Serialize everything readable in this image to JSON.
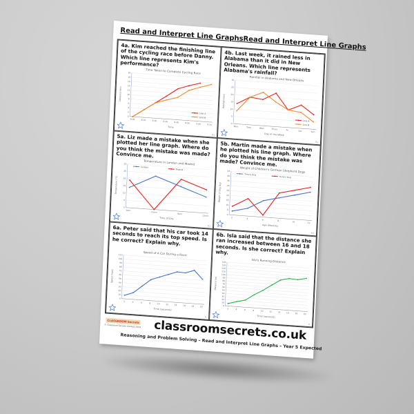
{
  "page": {
    "title_left": "Read and Interpret Line Graphs",
    "title_right": "Read and Interpret Line Graphs",
    "footer": {
      "logo": "CLASSROOM Secrets",
      "copyright": "© Classroom Secrets Limited 2018",
      "site": "classroomsecrets.co.uk",
      "subtitle": "Reasoning and Problem Solving – Read and Interpret Line Graphs – Year 5 Expected"
    }
  },
  "questions": [
    {
      "id": "4a",
      "text": "4a. Kim reached the finishing line of the cycling race before Danny. Which line represents Kim's performance?",
      "page_ref": "R1"
    },
    {
      "id": "4b",
      "text": "4b. Last week, it rained less in Alabama than it did in New Orleans. Which line represents Alabama's rainfall?",
      "page_ref": "R1"
    },
    {
      "id": "5a",
      "text": "5a. Liz made a mistake when she plotted her line graph. Where do you think the mistake was made? Convince me.",
      "page_ref": "R1"
    },
    {
      "id": "5b",
      "text": "5b. Martin made a mistake when he plotted his line graph. Where do you think the mistake was made? Convince me.",
      "page_ref": "R1"
    },
    {
      "id": "6a",
      "text": "6a. Peter said that his car took 14 seconds to reach its top speed. Is he correct? Explain why.",
      "page_ref": "R"
    },
    {
      "id": "6b",
      "text": "6b. Isla said that the distance she ran increased between 16 and 18 seconds. Is she correct? Explain why.",
      "page_ref": "R"
    }
  ],
  "chart_data": [
    {
      "id": "4a",
      "type": "line",
      "title": "Time Taken to Complete Cycling Race",
      "xlabel": "Time",
      "ylabel": "Distance (km)",
      "categories": [
        "8.00",
        "8.10",
        "8.20",
        "8.30",
        "8.40",
        "8.50",
        "9.00",
        "9.10"
      ],
      "ylim": [
        0,
        20
      ],
      "yticks": [
        0,
        2,
        4,
        6,
        8,
        10,
        12,
        14,
        16,
        18,
        20
      ],
      "grid": true,
      "legend_position": "bottom-right",
      "series": [
        {
          "name": "Line A",
          "color": "#ee1c1c",
          "values": [
            0,
            3.5,
            7,
            10.5,
            14.2,
            16,
            17.5,
            null
          ]
        },
        {
          "name": "Line B",
          "color": "#f08a2c",
          "values": [
            0,
            3.5,
            7,
            8.7,
            10.2,
            13.8,
            15.6,
            17.2
          ]
        }
      ]
    },
    {
      "id": "4b",
      "type": "line",
      "title": "Rainfall in Alabama and New Orleans",
      "xlabel": "Day of the Week",
      "ylabel": "Rainfall (mm)",
      "categories": [
        "Mon",
        "Tues",
        "Wed",
        "Thurs",
        "Fri",
        "Sat",
        "Sun"
      ],
      "ylim": [
        0,
        30
      ],
      "yticks": [
        0,
        5,
        10,
        15,
        20,
        25,
        30
      ],
      "grid": true,
      "legend_position": "bottom-right",
      "series": [
        {
          "name": "Line A",
          "color": "#ee1c1c",
          "values": [
            14,
            19,
            18,
            23,
            12,
            16,
            10
          ]
        },
        {
          "name": "Line B",
          "color": "#f08a2c",
          "values": [
            9,
            19,
            23,
            17,
            12,
            11,
            5
          ]
        }
      ]
    },
    {
      "id": "5a",
      "type": "line",
      "title": "Temperature in London and Madrid",
      "xlabel": "Time of Day",
      "ylabel": "Temperature (°C)",
      "categories": [
        "6am",
        "12pm",
        "6pm",
        "12am"
      ],
      "ylim": [
        0,
        30
      ],
      "yticks": [
        0,
        5,
        10,
        15,
        20,
        25,
        30
      ],
      "grid": true,
      "legend_position": "top",
      "series": [
        {
          "name": "London",
          "color": "#4472c4",
          "values": [
            14,
            23,
            17,
            11
          ]
        },
        {
          "name": "Madrid",
          "color": "#ee1c1c",
          "values": [
            19,
            0,
            22,
            16
          ]
        }
      ]
    },
    {
      "id": "5b",
      "type": "line",
      "title": "Weight of Children's German Shepherd Dogs",
      "xlabel": "Age (Months)",
      "ylabel": "Weight of Dog (kg)",
      "categories": [
        "2",
        "4",
        "6",
        "8",
        "10",
        "12"
      ],
      "ylim": [
        0,
        45
      ],
      "yticks": [
        0,
        5,
        10,
        15,
        20,
        25,
        30,
        35,
        40,
        45
      ],
      "grid": true,
      "legend_position": "top",
      "series": [
        {
          "name": "Theo's Dog",
          "color": "#4472c4",
          "values": [
            4,
            8,
            17,
            21,
            25,
            29
          ]
        },
        {
          "name": "Holly's Dog",
          "color": "#ee1c1c",
          "values": [
            9,
            18,
            2,
            26,
            30,
            34
          ]
        }
      ]
    },
    {
      "id": "6a",
      "type": "line",
      "title": "Speed of A Car During a Race",
      "xlabel": "Time (seconds)",
      "ylabel": "Speed (mph)",
      "categories": [
        "2",
        "4",
        "6",
        "8",
        "10",
        "12",
        "14",
        "16",
        "18",
        "20"
      ],
      "ylim": [
        0,
        110
      ],
      "yticks": [
        0,
        10,
        20,
        30,
        40,
        50,
        60,
        70,
        80,
        90,
        100,
        110
      ],
      "grid": true,
      "legend_position": "none",
      "series": [
        {
          "name": "Speed",
          "color": "#4472c4",
          "values": [
            9,
            17,
            35,
            53,
            61,
            69,
            77,
            76,
            84,
            63
          ]
        }
      ]
    },
    {
      "id": "6b",
      "type": "line",
      "title": "Isla's Running Distance",
      "xlabel": "Time (seconds)",
      "ylabel": "Distance (m)",
      "categories": [
        "2",
        "4",
        "6",
        "8",
        "10",
        "12",
        "14",
        "16",
        "18",
        "20"
      ],
      "ylim": [
        0,
        140
      ],
      "yticks": [
        0,
        10,
        20,
        30,
        40,
        50,
        60,
        70,
        80,
        90,
        100,
        110,
        120,
        130,
        140
      ],
      "grid": true,
      "legend_position": "none",
      "series": [
        {
          "name": "Distance",
          "color": "#22b04a",
          "values": [
            8,
            16,
            23,
            42,
            58,
            77,
            95,
            102,
            100,
            106
          ]
        }
      ]
    }
  ]
}
